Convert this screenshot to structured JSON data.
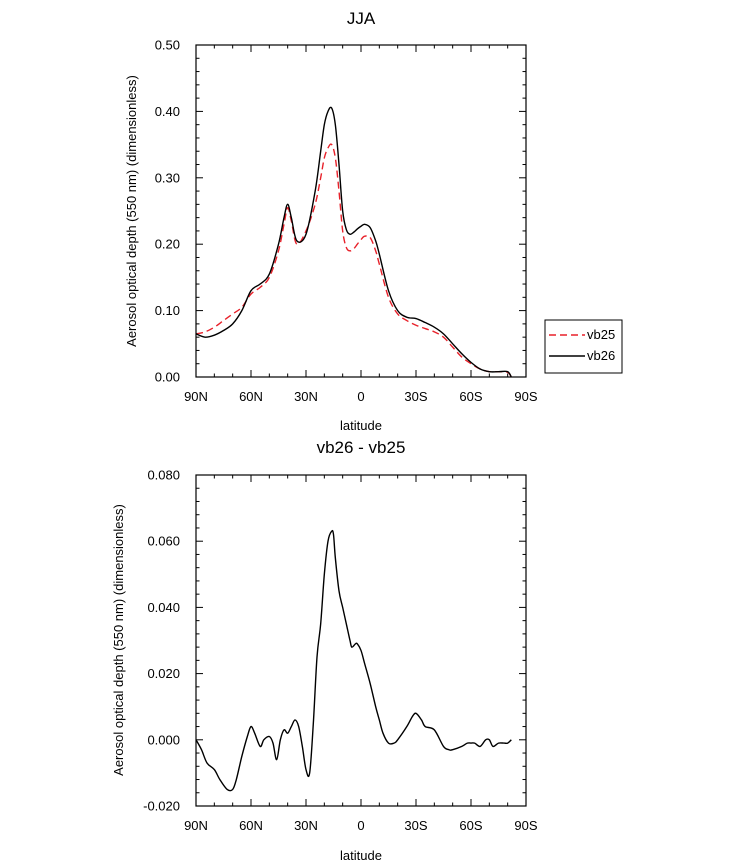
{
  "chart_data": [
    {
      "type": "line",
      "title": "JJA",
      "xlabel": "latitude",
      "ylabel": "Aerosol optical depth (550 nm) (dimensionless)",
      "xlim": [
        90,
        -90
      ],
      "ylim": [
        0.0,
        0.5
      ],
      "x_ticks": [
        90,
        60,
        30,
        0,
        -30,
        -60,
        -90
      ],
      "x_tick_labels": [
        "90N",
        "60N",
        "30N",
        "0",
        "30S",
        "60S",
        "90S"
      ],
      "y_ticks": [
        0.0,
        0.1,
        0.2,
        0.3,
        0.4,
        0.5
      ],
      "y_tick_labels": [
        "0.00",
        "0.10",
        "0.20",
        "0.30",
        "0.40",
        "0.50"
      ],
      "grid": false,
      "legend": "right",
      "series": [
        {
          "name": "vb25",
          "color": "#e8212a",
          "dash": "dashed",
          "x": [
            90,
            85,
            80,
            75,
            70,
            65,
            60,
            55,
            50,
            45,
            42,
            40,
            38,
            35,
            30,
            25,
            22,
            20,
            18,
            16,
            14,
            12,
            10,
            8,
            6,
            4,
            2,
            0,
            -2,
            -5,
            -8,
            -10,
            -15,
            -20,
            -25,
            -30,
            -35,
            -40,
            -45,
            -50,
            -55,
            -60,
            -65,
            -70,
            -75,
            -80,
            -82
          ],
          "y": [
            0.065,
            0.068,
            0.075,
            0.085,
            0.095,
            0.105,
            0.125,
            0.135,
            0.15,
            0.19,
            0.23,
            0.255,
            0.235,
            0.2,
            0.22,
            0.26,
            0.3,
            0.33,
            0.345,
            0.35,
            0.33,
            0.28,
            0.22,
            0.195,
            0.19,
            0.193,
            0.2,
            0.207,
            0.212,
            0.21,
            0.19,
            0.17,
            0.12,
            0.095,
            0.085,
            0.078,
            0.073,
            0.068,
            0.06,
            0.045,
            0.03,
            0.02,
            0.012,
            0.008,
            0.008,
            0.007,
            0.0
          ]
        },
        {
          "name": "vb26",
          "color": "#000000",
          "dash": "solid",
          "x": [
            90,
            85,
            80,
            75,
            70,
            65,
            60,
            55,
            50,
            45,
            42,
            40,
            38,
            35,
            30,
            25,
            22,
            20,
            18,
            16,
            14,
            12,
            10,
            8,
            6,
            4,
            2,
            0,
            -2,
            -5,
            -8,
            -10,
            -15,
            -20,
            -25,
            -30,
            -35,
            -40,
            -45,
            -50,
            -55,
            -60,
            -65,
            -70,
            -75,
            -80,
            -82
          ],
          "y": [
            0.065,
            0.06,
            0.063,
            0.07,
            0.08,
            0.1,
            0.13,
            0.14,
            0.155,
            0.2,
            0.24,
            0.26,
            0.24,
            0.205,
            0.215,
            0.28,
            0.34,
            0.38,
            0.4,
            0.405,
            0.38,
            0.32,
            0.25,
            0.222,
            0.215,
            0.218,
            0.223,
            0.227,
            0.23,
            0.225,
            0.205,
            0.185,
            0.13,
            0.1,
            0.09,
            0.088,
            0.082,
            0.075,
            0.065,
            0.05,
            0.035,
            0.022,
            0.012,
            0.008,
            0.008,
            0.008,
            0.0
          ]
        }
      ]
    },
    {
      "type": "line",
      "title": "vb26 - vb25",
      "xlabel": "latitude",
      "ylabel": "Aerosol optical depth (550 nm) (dimensionless)",
      "xlim": [
        90,
        -90
      ],
      "ylim": [
        -0.02,
        0.08
      ],
      "x_ticks": [
        90,
        60,
        30,
        0,
        -30,
        -60,
        -90
      ],
      "x_tick_labels": [
        "90N",
        "60N",
        "30N",
        "0",
        "30S",
        "60S",
        "90S"
      ],
      "y_ticks": [
        -0.02,
        0.0,
        0.02,
        0.04,
        0.06,
        0.08
      ],
      "y_tick_labels": [
        "-0.020",
        "0.000",
        "0.020",
        "0.040",
        "0.060",
        "0.080"
      ],
      "grid": false,
      "series": [
        {
          "color": "#000000",
          "dash": "solid",
          "x": [
            90,
            87,
            84,
            80,
            77,
            73,
            70,
            68,
            65,
            62,
            60,
            58,
            55,
            53,
            50,
            48,
            46,
            44,
            42,
            40,
            38,
            36,
            34,
            32,
            30,
            28,
            26,
            24,
            22,
            20,
            18,
            16,
            15,
            14,
            12,
            10,
            8,
            6,
            5,
            3,
            2,
            0,
            -2,
            -5,
            -8,
            -10,
            -12,
            -15,
            -18,
            -20,
            -25,
            -28,
            -30,
            -33,
            -35,
            -40,
            -45,
            -48,
            -50,
            -55,
            -58,
            -60,
            -62,
            -65,
            -68,
            -70,
            -72,
            -75,
            -78,
            -80,
            -82
          ],
          "y": [
            0.0,
            -0.003,
            -0.007,
            -0.009,
            -0.012,
            -0.015,
            -0.015,
            -0.012,
            -0.005,
            0.001,
            0.004,
            0.002,
            -0.002,
            0.0,
            0.001,
            -0.001,
            -0.006,
            0.0,
            0.003,
            0.002,
            0.004,
            0.006,
            0.004,
            -0.002,
            -0.009,
            -0.01,
            0.005,
            0.025,
            0.035,
            0.05,
            0.06,
            0.063,
            0.062,
            0.055,
            0.045,
            0.04,
            0.035,
            0.03,
            0.028,
            0.029,
            0.029,
            0.027,
            0.023,
            0.017,
            0.01,
            0.006,
            0.002,
            -0.001,
            -0.001,
            0.0,
            0.004,
            0.007,
            0.008,
            0.006,
            0.004,
            0.003,
            -0.002,
            -0.003,
            -0.003,
            -0.002,
            -0.001,
            -0.001,
            -0.001,
            -0.002,
            0.0,
            0.0,
            -0.002,
            -0.001,
            -0.001,
            -0.001,
            0.0
          ]
        }
      ]
    }
  ]
}
